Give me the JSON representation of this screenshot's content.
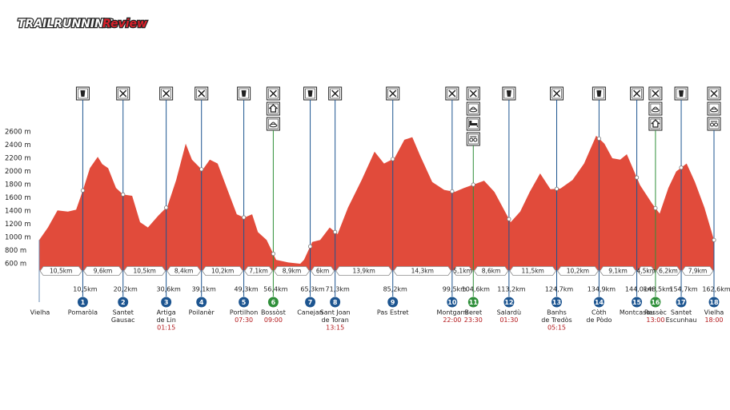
{
  "logo": {
    "part1": "TRAILRUNNING",
    "part2": "Review"
  },
  "chart_data": {
    "type": "area",
    "color": "#e14b3b",
    "xlim": [
      0,
      162.6
    ],
    "ylim": [
      500,
      2600
    ],
    "yticks": [
      {
        "value": 600,
        "label": "600 m"
      },
      {
        "value": 800,
        "label": "800 m"
      },
      {
        "value": 1000,
        "label": "1000 m"
      },
      {
        "value": 1200,
        "label": "1200 m"
      },
      {
        "value": 1400,
        "label": "1400 m"
      },
      {
        "value": 1600,
        "label": "1600 m"
      },
      {
        "value": 1800,
        "label": "1800 m"
      },
      {
        "value": 2000,
        "label": "2000 m"
      },
      {
        "value": 2200,
        "label": "2200 m"
      },
      {
        "value": 2400,
        "label": "2400 m"
      },
      {
        "value": 2600,
        "label": "2600 m"
      }
    ],
    "x": [
      0,
      2.1,
      4.4,
      6.9,
      8.9,
      10.6,
      12.2,
      14.1,
      15.2,
      16.6,
      18.5,
      20.2,
      22.4,
      24.3,
      26.2,
      28.7,
      30.9,
      33.0,
      35.3,
      36.8,
      39.3,
      41.1,
      43.0,
      45.5,
      47.6,
      49.4,
      51.3,
      52.7,
      54.8,
      57.1,
      60.0,
      62.9,
      63.8,
      65.8,
      67.7,
      70.0,
      71.9,
      74.4,
      77.7,
      80.8,
      83.1,
      85.6,
      88.0,
      89.9,
      91.8,
      94.7,
      97.6,
      100.1,
      102.4,
      105.5,
      107.2,
      109.7,
      113.6,
      115.9,
      118.2,
      120.7,
      123.2,
      125.6,
      128.5,
      131.3,
      134.2,
      136.2,
      138.1,
      140.0,
      141.6,
      144.8,
      147.7,
      149.5,
      151.6,
      153.5,
      156.0,
      158.0,
      160.3,
      162.6
    ],
    "values": [
      960,
      1150,
      1410,
      1390,
      1420,
      1730,
      2050,
      2220,
      2110,
      2050,
      1750,
      1650,
      1630,
      1230,
      1150,
      1330,
      1470,
      1870,
      2420,
      2180,
      2020,
      2180,
      2120,
      1700,
      1350,
      1300,
      1350,
      1080,
      960,
      660,
      620,
      600,
      660,
      930,
      960,
      1150,
      1050,
      1450,
      1870,
      2300,
      2120,
      2200,
      2480,
      2520,
      2240,
      1840,
      1720,
      1690,
      1750,
      1820,
      1860,
      1690,
      1230,
      1390,
      1690,
      1970,
      1730,
      1740,
      1870,
      2120,
      2540,
      2420,
      2200,
      2180,
      2260,
      1790,
      1510,
      1360,
      1750,
      2000,
      2120,
      1840,
      1450,
      960
    ],
    "start": "Vielha",
    "checkpoints": [
      {
        "number": 1,
        "name": [
          "Pomaròla"
        ],
        "km": {
          "value": 10.5,
          "label": "10,5km"
        },
        "color": "#1d5590"
      },
      {
        "number": 2,
        "name": [
          "Santet",
          "Gausac"
        ],
        "km": {
          "value": 20.2,
          "label": "20,2km"
        },
        "color": "#1d5590"
      },
      {
        "number": 3,
        "name": [
          "Artiga",
          "de Lin"
        ],
        "km": {
          "value": 30.6,
          "label": "30,6km"
        },
        "time": "01:15",
        "color": "#1d5590"
      },
      {
        "number": 4,
        "name": [
          "Poilanèr"
        ],
        "km": {
          "value": 39.1,
          "label": "39,1km"
        },
        "color": "#1d5590"
      },
      {
        "number": 5,
        "name": [
          "Portilhon"
        ],
        "km": {
          "value": 49.3,
          "label": "49,3km"
        },
        "time": "07:30",
        "color": "#1d5590"
      },
      {
        "number": 6,
        "name": [
          "Bossòst"
        ],
        "km": {
          "value": 56.4,
          "label": "56,4km"
        },
        "time": "09:00",
        "color": "#2f8f3a"
      },
      {
        "number": 7,
        "name": [
          "Canejan"
        ],
        "km": {
          "value": 65.3,
          "label": "65,3km"
        },
        "color": "#1d5590"
      },
      {
        "number": 8,
        "name": [
          "Sant Joan",
          "de Toran"
        ],
        "km": {
          "value": 71.3,
          "label": "71,3km"
        },
        "time": "13:15",
        "color": "#1d5590"
      },
      {
        "number": 9,
        "name": [
          "Pas Estret"
        ],
        "km": {
          "value": 85.2,
          "label": "85,2km"
        },
        "color": "#1d5590"
      },
      {
        "number": 10,
        "name": [
          "Montgarri"
        ],
        "km": {
          "value": 99.5,
          "label": "99,5km"
        },
        "time": "22:00",
        "color": "#1d5590"
      },
      {
        "number": 11,
        "name": [
          "Beret"
        ],
        "km": {
          "value": 104.6,
          "label": "104,6km"
        },
        "time": "23:30",
        "color": "#2f8f3a"
      },
      {
        "number": 12,
        "name": [
          "Salardù"
        ],
        "km": {
          "value": 113.2,
          "label": "113,2km"
        },
        "time": "01:30",
        "color": "#1d5590"
      },
      {
        "number": 13,
        "name": [
          "Banhs",
          "de Tredòs"
        ],
        "km": {
          "value": 124.7,
          "label": "124,7km"
        },
        "time": "05:15",
        "color": "#1d5590"
      },
      {
        "number": 14,
        "name": [
          "Còth",
          "de Pòdo"
        ],
        "km": {
          "value": 134.9,
          "label": "134,9km"
        },
        "color": "#1d5590"
      },
      {
        "number": 15,
        "name": [
          "Montcasau"
        ],
        "km": {
          "value": 144.0,
          "label": "144,0km"
        },
        "color": "#1d5590"
      },
      {
        "number": 16,
        "name": [
          "Ressèc"
        ],
        "km": {
          "value": 148.5,
          "label": "148,5km"
        },
        "time": "13:00",
        "color": "#2f8f3a"
      },
      {
        "number": 17,
        "name": [
          "Santet",
          "Escunhau"
        ],
        "km": {
          "value": 154.7,
          "label": "154,7km"
        },
        "color": "#1d5590"
      },
      {
        "number": 18,
        "name": [
          "Vielha"
        ],
        "km": {
          "value": 162.6,
          "label": "162,6km"
        },
        "time": "18:00",
        "color": "#1d5590"
      }
    ],
    "segments": [
      "10,5km",
      "9,6km",
      "10,5km",
      "8,4km",
      "10,2km",
      "7,1km",
      "8,9km",
      "6km",
      "13,9km",
      "14,3km",
      "5,1km",
      "8,6km",
      "11,5km",
      "10,2km",
      "9,1km",
      "4,5km",
      "6,2km",
      "7,9km"
    ]
  }
}
